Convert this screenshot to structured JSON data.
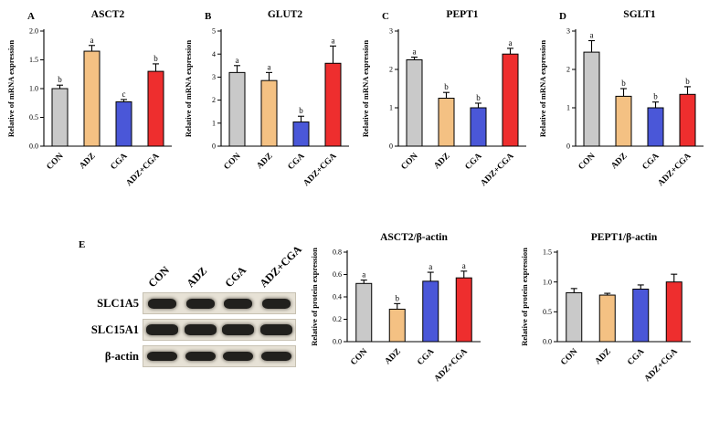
{
  "figure": {
    "bar_colors": [
      "#c9c9c9",
      "#f4c183",
      "#4a57d8",
      "#ee2e2e"
    ],
    "blot": {
      "letter": "E",
      "headers": [
        "CON",
        "ADZ",
        "CGA",
        "ADZ+CGA"
      ],
      "rows": [
        {
          "label": "SLC1A5"
        },
        {
          "label": "SLC15A1"
        },
        {
          "label": "β-actin"
        }
      ]
    }
  },
  "chart_data": [
    {
      "type": "bar",
      "panel_letter": "A",
      "title": "ASCT2",
      "xlabel": "",
      "ylabel": "Relative of mRNA expression",
      "ylim": [
        0,
        2.0
      ],
      "yticks": [
        0,
        0.5,
        1.0,
        1.5,
        2.0
      ],
      "ytick_labels": [
        "0.0",
        "0.5",
        "1.0",
        "1.5",
        "2.0"
      ],
      "categories": [
        "CON",
        "ADZ",
        "CGA",
        "ADZ+CGA"
      ],
      "values": [
        1.0,
        1.65,
        0.77,
        1.3
      ],
      "errors": [
        0.06,
        0.1,
        0.04,
        0.13
      ],
      "sig_letters": [
        "b",
        "a",
        "c",
        "b"
      ],
      "grid": false,
      "legend": false
    },
    {
      "type": "bar",
      "panel_letter": "B",
      "title": "GLUT2",
      "xlabel": "",
      "ylabel": "Relative of mRNA expression",
      "ylim": [
        0,
        5
      ],
      "yticks": [
        0,
        1,
        2,
        3,
        4,
        5
      ],
      "ytick_labels": [
        "0",
        "1",
        "2",
        "3",
        "4",
        "5"
      ],
      "categories": [
        "CON",
        "ADZ",
        "CGA",
        "ADZ+CGA"
      ],
      "values": [
        3.2,
        2.85,
        1.05,
        3.6
      ],
      "errors": [
        0.3,
        0.35,
        0.25,
        0.75
      ],
      "sig_letters": [
        "a",
        "a",
        "b",
        "a"
      ],
      "grid": false,
      "legend": false
    },
    {
      "type": "bar",
      "panel_letter": "C",
      "title": "PEPT1",
      "xlabel": "",
      "ylabel": "Relative of mRNA expression",
      "ylim": [
        0,
        3
      ],
      "yticks": [
        0,
        1,
        2,
        3
      ],
      "ytick_labels": [
        "0",
        "1",
        "2",
        "3"
      ],
      "categories": [
        "CON",
        "ADZ",
        "CGA",
        "ADZ+CGA"
      ],
      "values": [
        2.25,
        1.25,
        1.0,
        2.4
      ],
      "errors": [
        0.07,
        0.15,
        0.12,
        0.15
      ],
      "sig_letters": [
        "a",
        "b",
        "b",
        "a"
      ],
      "grid": false,
      "legend": false
    },
    {
      "type": "bar",
      "panel_letter": "D",
      "title": "SGLT1",
      "xlabel": "",
      "ylabel": "Relative of mRNA expression",
      "ylim": [
        0,
        3
      ],
      "yticks": [
        0,
        1,
        2,
        3
      ],
      "ytick_labels": [
        "0",
        "1",
        "2",
        "3"
      ],
      "categories": [
        "CON",
        "ADZ",
        "CGA",
        "ADZ+CGA"
      ],
      "values": [
        2.45,
        1.3,
        1.0,
        1.35
      ],
      "errors": [
        0.3,
        0.2,
        0.15,
        0.2
      ],
      "sig_letters": [
        "a",
        "b",
        "b",
        "b"
      ],
      "grid": false,
      "legend": false
    },
    {
      "type": "bar",
      "panel_letter": "",
      "title": "ASCT2/β-actin",
      "xlabel": "",
      "ylabel": "Relative of protein expression",
      "ylim": [
        0,
        0.8
      ],
      "yticks": [
        0,
        0.2,
        0.4,
        0.6,
        0.8
      ],
      "ytick_labels": [
        "0.0",
        "0.2",
        "0.4",
        "0.6",
        "0.8"
      ],
      "categories": [
        "CON",
        "ADZ",
        "CGA",
        "ADZ+CGA"
      ],
      "values": [
        0.52,
        0.29,
        0.54,
        0.57
      ],
      "errors": [
        0.03,
        0.05,
        0.08,
        0.06
      ],
      "sig_letters": [
        "a",
        "b",
        "a",
        "a"
      ],
      "grid": false,
      "legend": false
    },
    {
      "type": "bar",
      "panel_letter": "",
      "title": "PEPT1/β-actin",
      "xlabel": "",
      "ylabel": "Relative of protein expression",
      "ylim": [
        0,
        1.5
      ],
      "yticks": [
        0,
        0.5,
        1.0,
        1.5
      ],
      "ytick_labels": [
        "0.0",
        "0.5",
        "1.0",
        "1.5"
      ],
      "categories": [
        "CON",
        "ADZ",
        "CGA",
        "ADZ+CGA"
      ],
      "values": [
        0.82,
        0.78,
        0.88,
        1.0
      ],
      "errors": [
        0.07,
        0.03,
        0.07,
        0.13
      ],
      "sig_letters": [
        "",
        "",
        "",
        ""
      ],
      "grid": false,
      "legend": false
    }
  ]
}
